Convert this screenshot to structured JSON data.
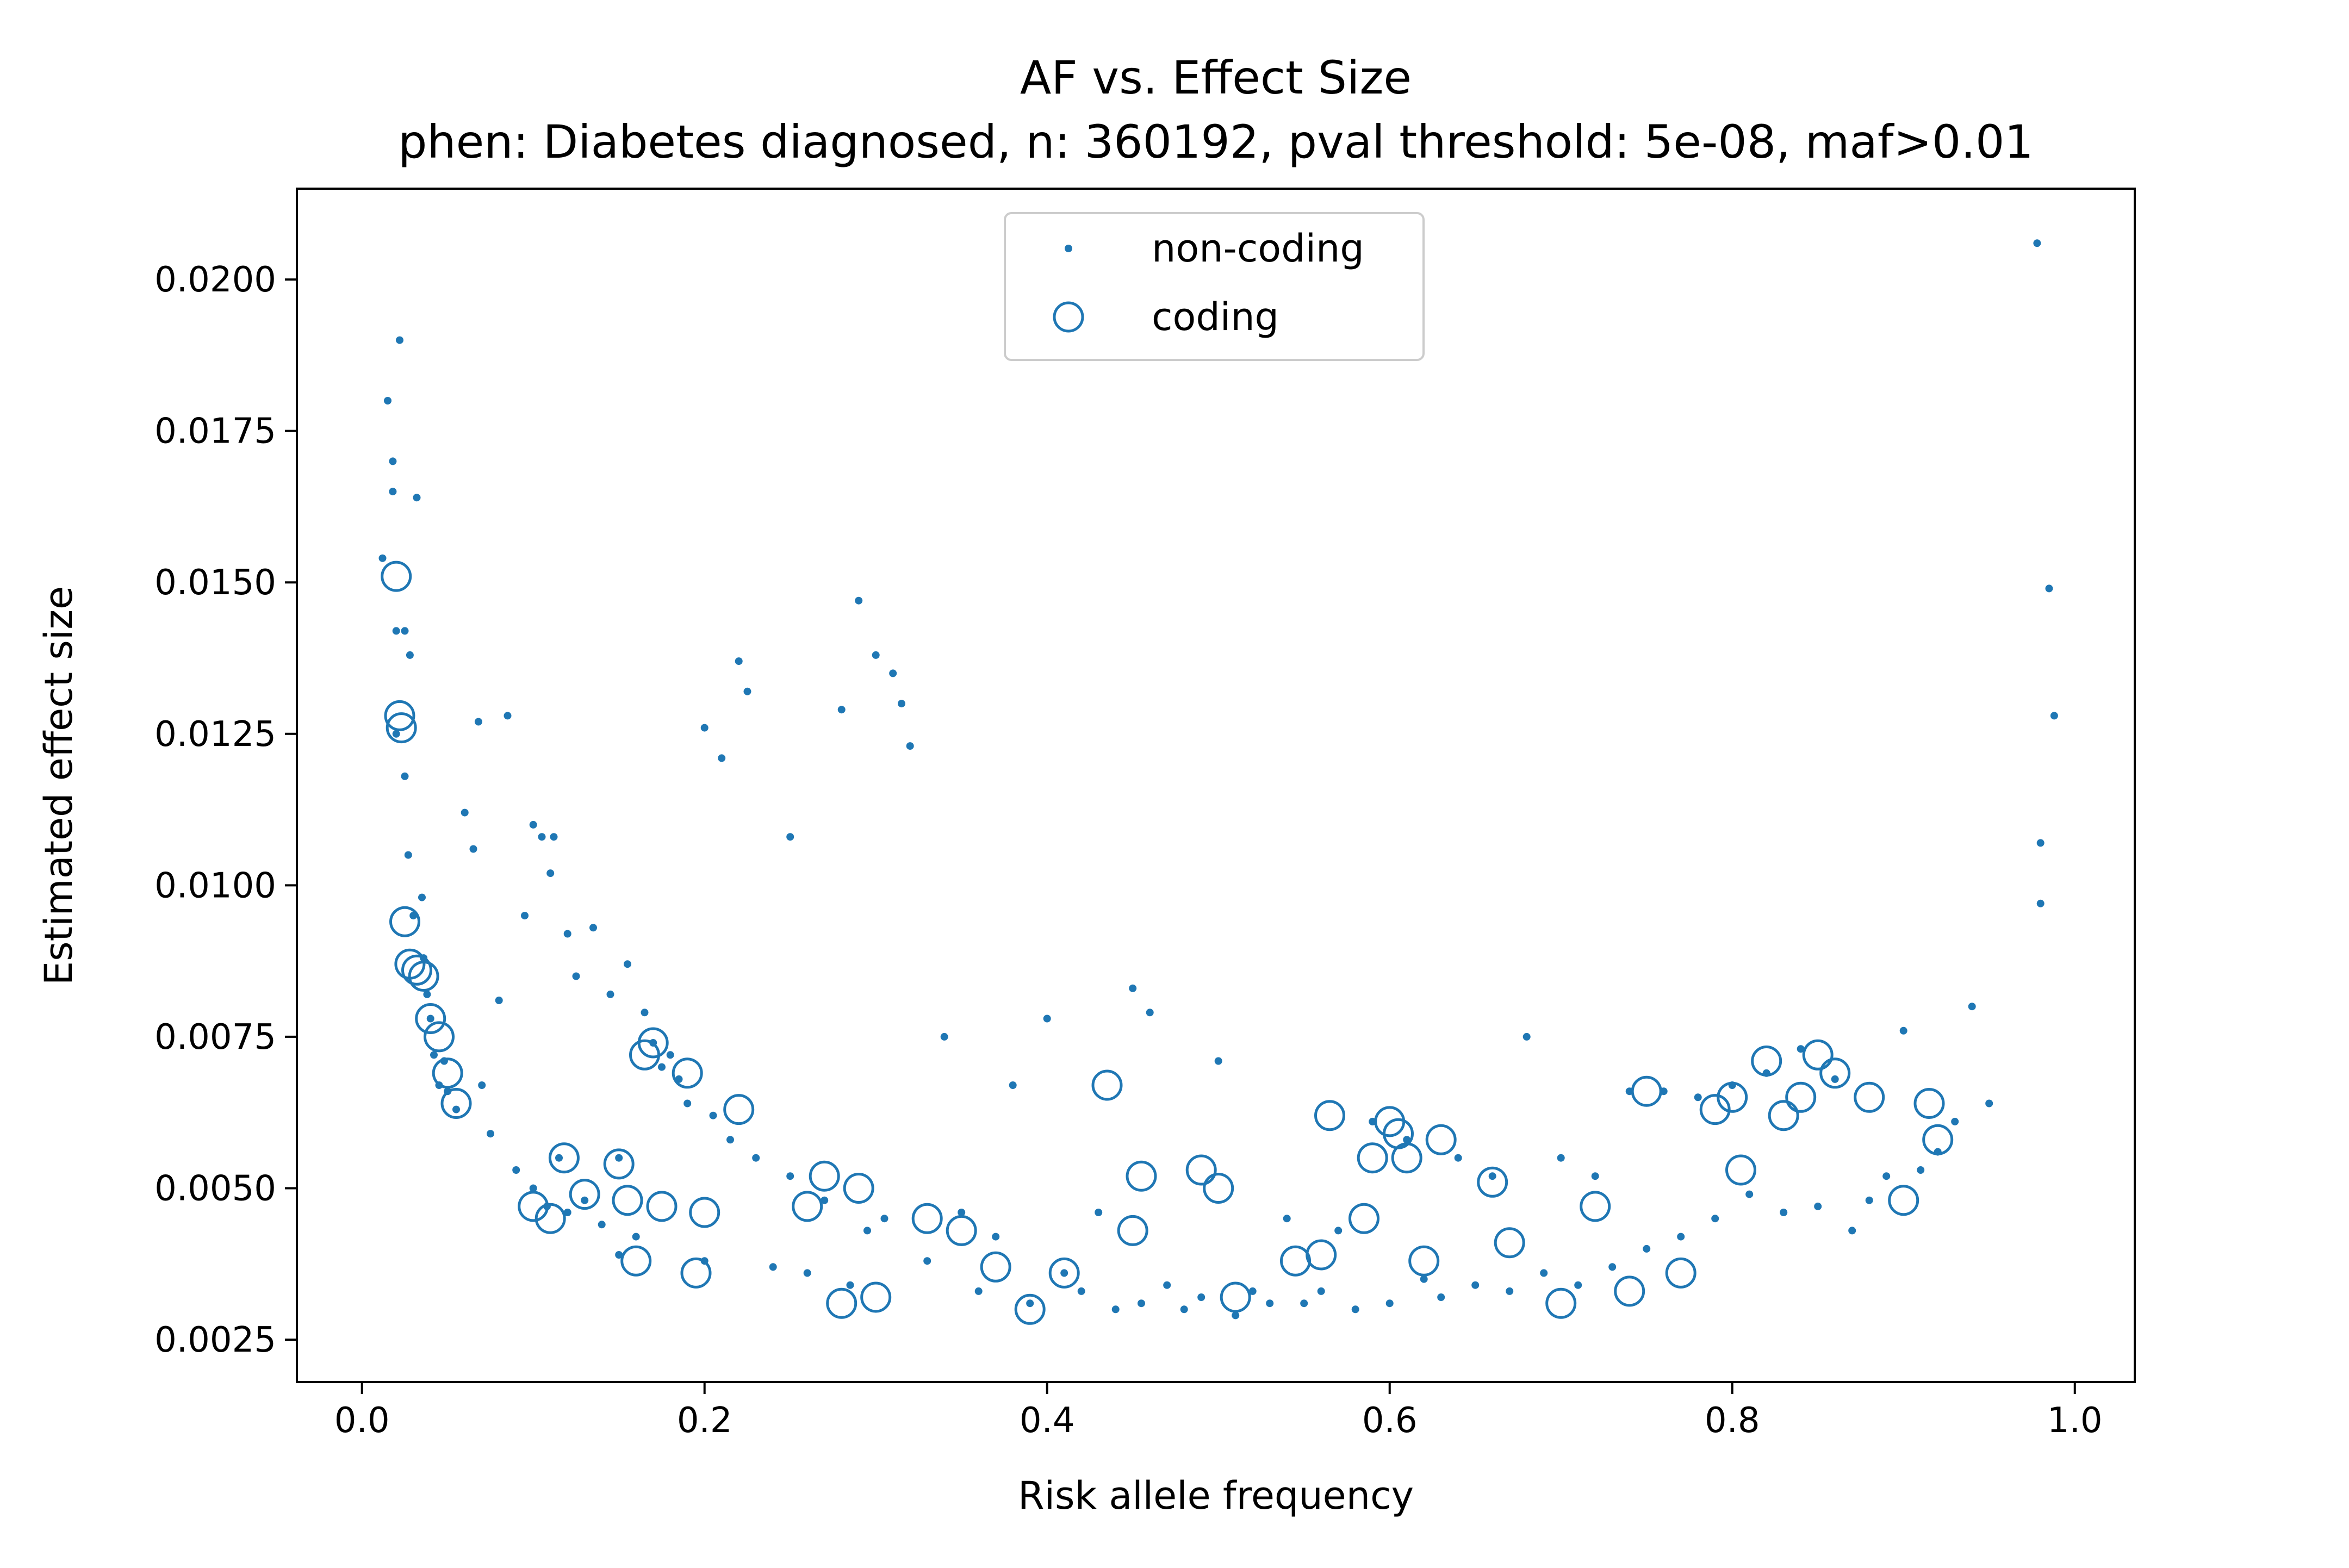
{
  "chart_data": {
    "type": "scatter",
    "title": "AF vs. Effect Size",
    "subtitle": "phen: Diabetes diagnosed, n: 360192, pval threshold: 5e-08, maf>0.01",
    "xlabel": "Risk allele frequency",
    "ylabel": "Estimated effect size",
    "xlim": [
      -0.038,
      1.035
    ],
    "ylim": [
      0.0018,
      0.0215
    ],
    "xticks": [
      "0.0",
      "0.2",
      "0.4",
      "0.6",
      "0.8",
      "1.0"
    ],
    "yticks": [
      "0.0025",
      "0.0050",
      "0.0075",
      "0.0100",
      "0.0125",
      "0.0150",
      "0.0175",
      "0.0200"
    ],
    "grid": false,
    "legend_position": "upper-center",
    "point_color": "#1f77b4",
    "series": [
      {
        "name": "non-coding",
        "marker": "dot",
        "x": [
          0.012,
          0.015,
          0.018,
          0.018,
          0.02,
          0.02,
          0.022,
          0.025,
          0.025,
          0.027,
          0.028,
          0.03,
          0.032,
          0.035,
          0.036,
          0.038,
          0.04,
          0.042,
          0.045,
          0.048,
          0.05,
          0.055,
          0.06,
          0.065,
          0.068,
          0.07,
          0.075,
          0.08,
          0.085,
          0.09,
          0.095,
          0.1,
          0.1,
          0.105,
          0.108,
          0.11,
          0.112,
          0.115,
          0.12,
          0.12,
          0.125,
          0.13,
          0.135,
          0.14,
          0.145,
          0.15,
          0.15,
          0.155,
          0.16,
          0.165,
          0.17,
          0.175,
          0.18,
          0.185,
          0.19,
          0.2,
          0.2,
          0.205,
          0.21,
          0.215,
          0.22,
          0.225,
          0.23,
          0.24,
          0.25,
          0.25,
          0.26,
          0.27,
          0.28,
          0.285,
          0.29,
          0.295,
          0.3,
          0.305,
          0.31,
          0.315,
          0.32,
          0.33,
          0.34,
          0.35,
          0.36,
          0.37,
          0.38,
          0.39,
          0.4,
          0.41,
          0.42,
          0.43,
          0.44,
          0.45,
          0.455,
          0.46,
          0.47,
          0.48,
          0.49,
          0.5,
          0.51,
          0.52,
          0.53,
          0.54,
          0.55,
          0.56,
          0.57,
          0.58,
          0.59,
          0.6,
          0.61,
          0.62,
          0.63,
          0.64,
          0.65,
          0.66,
          0.67,
          0.68,
          0.69,
          0.7,
          0.71,
          0.72,
          0.73,
          0.74,
          0.75,
          0.76,
          0.77,
          0.78,
          0.79,
          0.8,
          0.81,
          0.82,
          0.83,
          0.84,
          0.85,
          0.86,
          0.87,
          0.88,
          0.89,
          0.9,
          0.91,
          0.92,
          0.93,
          0.94,
          0.95,
          0.978,
          0.98,
          0.98,
          0.985,
          0.988
        ],
        "y": [
          0.0154,
          0.018,
          0.017,
          0.0165,
          0.0142,
          0.0125,
          0.019,
          0.0142,
          0.0118,
          0.0105,
          0.0138,
          0.0095,
          0.0164,
          0.0098,
          0.0088,
          0.0082,
          0.0078,
          0.0072,
          0.0067,
          0.0071,
          0.0066,
          0.0063,
          0.0112,
          0.0106,
          0.0127,
          0.0067,
          0.0059,
          0.0081,
          0.0128,
          0.0053,
          0.0095,
          0.011,
          0.005,
          0.0108,
          0.0047,
          0.0102,
          0.0108,
          0.0055,
          0.0092,
          0.0046,
          0.0085,
          0.0048,
          0.0093,
          0.0044,
          0.0082,
          0.0055,
          0.0039,
          0.0087,
          0.0042,
          0.0079,
          0.0074,
          0.007,
          0.0072,
          0.0068,
          0.0064,
          0.0126,
          0.0038,
          0.0062,
          0.0121,
          0.0058,
          0.0137,
          0.0132,
          0.0055,
          0.0037,
          0.0108,
          0.0052,
          0.0036,
          0.0048,
          0.0129,
          0.0034,
          0.0147,
          0.0043,
          0.0138,
          0.0045,
          0.0135,
          0.013,
          0.0123,
          0.0038,
          0.0075,
          0.0046,
          0.0033,
          0.0042,
          0.0067,
          0.0031,
          0.0078,
          0.0036,
          0.0033,
          0.0046,
          0.003,
          0.0083,
          0.0031,
          0.0079,
          0.0034,
          0.003,
          0.0032,
          0.0071,
          0.0029,
          0.0033,
          0.0031,
          0.0045,
          0.0031,
          0.0033,
          0.0043,
          0.003,
          0.0061,
          0.0031,
          0.0058,
          0.0035,
          0.0032,
          0.0055,
          0.0034,
          0.0052,
          0.0033,
          0.0075,
          0.0036,
          0.0055,
          0.0034,
          0.0052,
          0.0037,
          0.0066,
          0.004,
          0.0066,
          0.0042,
          0.0065,
          0.0045,
          0.0067,
          0.0049,
          0.0069,
          0.0046,
          0.0073,
          0.0047,
          0.0068,
          0.0043,
          0.0048,
          0.0052,
          0.0076,
          0.0053,
          0.0056,
          0.0061,
          0.008,
          0.0064,
          0.0206,
          0.0107,
          0.0097,
          0.0149,
          0.0128
        ]
      },
      {
        "name": "coding",
        "marker": "open-circle",
        "x": [
          0.02,
          0.022,
          0.023,
          0.025,
          0.028,
          0.032,
          0.036,
          0.04,
          0.045,
          0.05,
          0.055,
          0.1,
          0.11,
          0.118,
          0.13,
          0.15,
          0.155,
          0.16,
          0.165,
          0.17,
          0.175,
          0.19,
          0.195,
          0.2,
          0.22,
          0.26,
          0.27,
          0.28,
          0.29,
          0.3,
          0.33,
          0.35,
          0.37,
          0.39,
          0.41,
          0.435,
          0.45,
          0.455,
          0.49,
          0.5,
          0.51,
          0.545,
          0.56,
          0.565,
          0.585,
          0.59,
          0.6,
          0.605,
          0.61,
          0.62,
          0.63,
          0.66,
          0.67,
          0.7,
          0.72,
          0.74,
          0.75,
          0.77,
          0.79,
          0.8,
          0.805,
          0.82,
          0.83,
          0.84,
          0.85,
          0.86,
          0.88,
          0.9,
          0.915,
          0.92
        ],
        "y": [
          0.0151,
          0.0128,
          0.0126,
          0.0094,
          0.0087,
          0.0086,
          0.0085,
          0.0078,
          0.0075,
          0.0069,
          0.0064,
          0.0047,
          0.0045,
          0.0055,
          0.0049,
          0.0054,
          0.0048,
          0.0038,
          0.0072,
          0.0074,
          0.0047,
          0.0069,
          0.0036,
          0.0046,
          0.0063,
          0.0047,
          0.0052,
          0.0031,
          0.005,
          0.0032,
          0.0045,
          0.0043,
          0.0037,
          0.003,
          0.0036,
          0.0067,
          0.0043,
          0.0052,
          0.0053,
          0.005,
          0.0032,
          0.0038,
          0.0039,
          0.0062,
          0.0045,
          0.0055,
          0.0061,
          0.0059,
          0.0055,
          0.0038,
          0.0058,
          0.0051,
          0.0041,
          0.0031,
          0.0047,
          0.0033,
          0.0066,
          0.0036,
          0.0063,
          0.0065,
          0.0053,
          0.0071,
          0.0062,
          0.0065,
          0.0072,
          0.0069,
          0.0065,
          0.0048,
          0.0064,
          0.0058
        ]
      }
    ]
  }
}
